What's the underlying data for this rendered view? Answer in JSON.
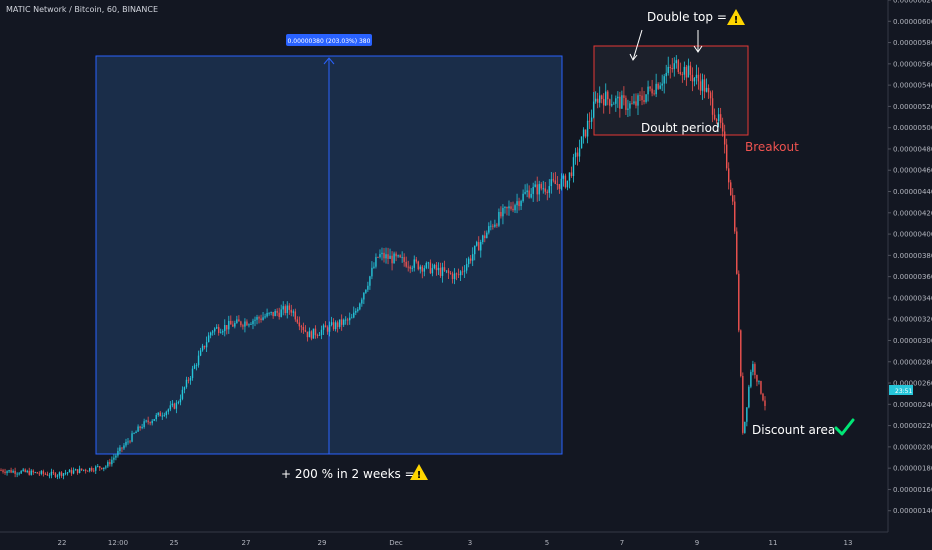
{
  "header": {
    "symbol_title": "MATIC Network / Bitcoin, 60, BINANCE"
  },
  "chart_data": {
    "type": "candlestick",
    "title": "MATIC Network / Bitcoin, 60, BINANCE",
    "y_axis": {
      "ylim": [
        1.2e-06,
        6.2e-06
      ],
      "ticks": [
        "0.00000140",
        "0.00000160",
        "0.00000180",
        "0.00000200",
        "0.00000220",
        "0.00000240",
        "0.00000260",
        "0.00000280",
        "0.00000300",
        "0.00000320",
        "0.00000340",
        "0.00000360",
        "0.00000380",
        "0.00000400",
        "0.00000420",
        "0.00000440",
        "0.00000460",
        "0.00000480",
        "0.00000500",
        "0.00000520",
        "0.00000540",
        "0.00000560",
        "0.00000580",
        "0.00000600",
        "0.00000620"
      ]
    },
    "x_axis": {
      "ticks": [
        "22",
        "12:00",
        "25",
        "27",
        "29",
        "Dec",
        "3",
        "5",
        "7",
        "9",
        "11",
        "13"
      ]
    },
    "last_price_label": "23:51",
    "anchor_points": [
      {
        "t": 0,
        "p": 1.78e-06
      },
      {
        "t": 0.06,
        "p": 1.74e-06
      },
      {
        "t": 0.12,
        "p": 1.82e-06
      },
      {
        "t": 0.16,
        "p": 2.2e-06
      },
      {
        "t": 0.2,
        "p": 2.4e-06
      },
      {
        "t": 0.24,
        "p": 3.1e-06
      },
      {
        "t": 0.29,
        "p": 3.2e-06
      },
      {
        "t": 0.33,
        "p": 3.3e-06
      },
      {
        "t": 0.35,
        "p": 3.05e-06
      },
      {
        "t": 0.4,
        "p": 3.2e-06
      },
      {
        "t": 0.43,
        "p": 3.8e-06
      },
      {
        "t": 0.48,
        "p": 3.7e-06
      },
      {
        "t": 0.52,
        "p": 3.6e-06
      },
      {
        "t": 0.56,
        "p": 4.1e-06
      },
      {
        "t": 0.6,
        "p": 4.4e-06
      },
      {
        "t": 0.645,
        "p": 4.5e-06
      },
      {
        "t": 0.68,
        "p": 5.3e-06
      },
      {
        "t": 0.72,
        "p": 5.2e-06
      },
      {
        "t": 0.77,
        "p": 5.6e-06
      },
      {
        "t": 0.8,
        "p": 5.4e-06
      },
      {
        "t": 0.82,
        "p": 5e-06
      },
      {
        "t": 0.835,
        "p": 4.2e-06
      },
      {
        "t": 0.845,
        "p": 2.1e-06
      },
      {
        "t": 0.855,
        "p": 2.8e-06
      },
      {
        "t": 0.87,
        "p": 2.4e-06
      }
    ],
    "annotations": {
      "measure_label": "0.00000380 (203.03%) 380",
      "gain_text": "+ 200 % in 2 weeks =",
      "double_top": "Double top =",
      "doubt_period": "Doubt period",
      "breakout": "Breakout",
      "discount_area": "Discount area"
    },
    "colors": {
      "up": "#26c6da",
      "down": "#ef5350",
      "measure_fill": "#1e3a5f",
      "measure_line": "#2962ff",
      "box_line": "#e53935"
    },
    "icons": [
      "warning-icon",
      "warning-icon",
      "checkmark-icon"
    ]
  }
}
